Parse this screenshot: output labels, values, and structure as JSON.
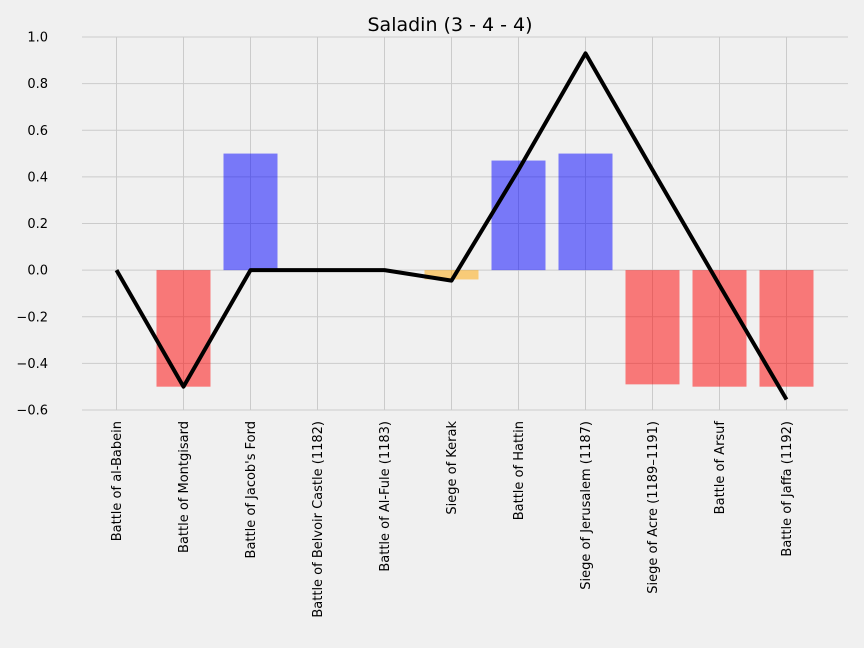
{
  "chart_data": {
    "type": "bar",
    "title": "Saladin (3 - 4 - 4)",
    "xlabel": "",
    "ylabel": "",
    "ylim": [
      -0.6,
      1.0
    ],
    "yticks": [
      "−0.6",
      "−0.4",
      "−0.2",
      "0.0",
      "0.2",
      "0.4",
      "0.6",
      "0.8",
      "1.0"
    ],
    "ytick_values": [
      -0.6,
      -0.4,
      -0.2,
      0.0,
      0.2,
      0.4,
      0.6,
      0.8,
      1.0
    ],
    "grid": true,
    "categories": [
      "Battle of al-Babein",
      "Battle of Montgisard",
      "Battle of Jacob's Ford",
      "Battle of Belvoir Castle (1182)",
      "Battle of Al-Fule (1183)",
      "Siege of Kerak",
      "Battle of Hattin",
      "Siege of Jerusalem (1187)",
      "Siege of Acre (1189–1191)",
      "Battle of Arsuf",
      "Battle of Jaffa (1192)"
    ],
    "bars": [
      0.0,
      -0.5,
      0.5,
      0.0,
      0.0,
      -0.04,
      0.47,
      0.5,
      -0.49,
      -0.5,
      -0.5
    ],
    "bar_colors": [
      "#ff0000",
      "#ff0000",
      "#0000ff",
      "#ffa500",
      "#ffa500",
      "#ffa500",
      "#0000ff",
      "#0000ff",
      "#ff0000",
      "#ff0000",
      "#ff0000"
    ],
    "line": [
      0.0,
      -0.5,
      0.0,
      0.0,
      0.0,
      -0.045,
      0.43,
      0.93,
      0.43,
      -0.065,
      -0.555
    ],
    "line_color": "#000000",
    "background": "#f0f0f0",
    "bar_opacity": 0.5
  }
}
